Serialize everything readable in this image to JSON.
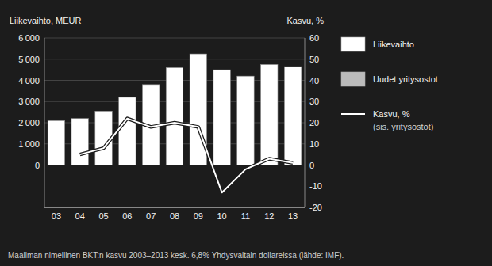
{
  "chart_data": {
    "type": "bar",
    "categories": [
      "03",
      "04",
      "05",
      "06",
      "07",
      "08",
      "09",
      "10",
      "11",
      "12",
      "13"
    ],
    "series": [
      {
        "name": "Liikevaihto",
        "type": "bar",
        "color": "#ffffff",
        "values": [
          2100,
          2200,
          2550,
          3200,
          3800,
          4600,
          5250,
          4500,
          4200,
          4750,
          4650
        ]
      },
      {
        "name": "Uudet yritysostot",
        "type": "bar",
        "color": "#bbbbbb",
        "values": [
          null,
          null,
          null,
          null,
          null,
          null,
          null,
          null,
          null,
          null,
          null
        ]
      },
      {
        "name": "Kasvu, %",
        "type": "line",
        "color": "#ffffff",
        "axis": "y2",
        "values": [
          null,
          5,
          8,
          22,
          18,
          20,
          18,
          -13,
          -2,
          3,
          1
        ]
      }
    ],
    "ylabel": "Liikevaihto, MEUR",
    "y2label": "Kasvu, %",
    "ylim": [
      -2000,
      6000
    ],
    "yticks": [
      0,
      {
        "value": 1000,
        "label": "1 000"
      },
      {
        "value": 2000,
        "label": "2 000"
      },
      {
        "value": 3000,
        "label": "3 000"
      },
      {
        "value": 4000,
        "label": "4 000"
      },
      {
        "value": 5000,
        "label": "5 000"
      },
      {
        "value": 6000,
        "label": "6 000"
      }
    ],
    "y2lim": [
      -20,
      60
    ],
    "y2ticks": [
      -20,
      -10,
      0,
      10,
      20,
      30,
      40,
      50,
      60
    ],
    "grid": true,
    "legend": "right",
    "annotations": [
      "(sis. yritysostot)",
      "Maailman nimellinen BKT:n kasvu 2003–2013 kesk. 6,8% Yhdysvaltain dollareissa (lähde: IMF)."
    ]
  }
}
